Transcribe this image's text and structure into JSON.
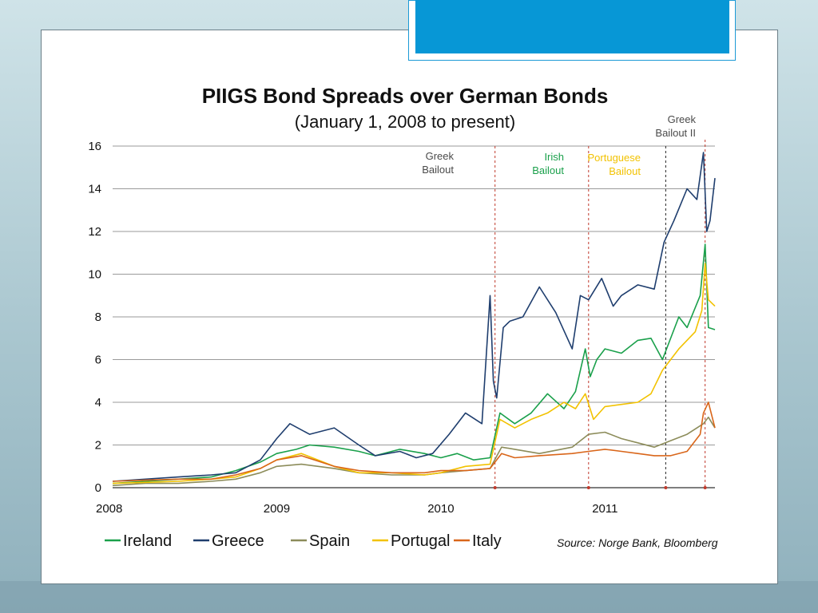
{
  "title": "PIIGS Bond Spreads over German Bonds",
  "subtitle": "(January 1, 2008 to present)",
  "source": "Source: Norge Bank, Bloomberg",
  "chart_data": {
    "type": "line",
    "title": "PIIGS Bond Spreads over German Bonds",
    "subtitle": "(January 1, 2008 to present)",
    "xlabel": "",
    "ylabel": "",
    "ylim": [
      0,
      16
    ],
    "xlim": [
      2008.0,
      2011.67
    ],
    "yticks": [
      0,
      2,
      4,
      6,
      8,
      10,
      12,
      14,
      16
    ],
    "xticks": [
      2008,
      2009,
      2010,
      2011
    ],
    "xtick_labels": [
      "2008",
      "2009",
      "2010",
      "2011"
    ],
    "grid": "horizontal",
    "legend": "bottom",
    "series": [
      {
        "name": "Ireland",
        "color": "#1aa04b",
        "x": [
          2008.0,
          2008.2,
          2008.4,
          2008.6,
          2008.75,
          2008.9,
          2009.0,
          2009.12,
          2009.2,
          2009.35,
          2009.5,
          2009.6,
          2009.75,
          2009.9,
          2010.0,
          2010.1,
          2010.2,
          2010.3,
          2010.36,
          2010.45,
          2010.55,
          2010.65,
          2010.75,
          2010.82,
          2010.88,
          2010.91,
          2010.95,
          2011.0,
          2011.1,
          2011.2,
          2011.28,
          2011.35,
          2011.45,
          2011.5,
          2011.58,
          2011.61,
          2011.63,
          2011.67
        ],
        "y": [
          0.2,
          0.3,
          0.4,
          0.5,
          0.8,
          1.2,
          1.6,
          1.8,
          2.0,
          1.9,
          1.7,
          1.5,
          1.8,
          1.6,
          1.4,
          1.6,
          1.3,
          1.4,
          3.5,
          3.0,
          3.5,
          4.4,
          3.7,
          4.5,
          6.5,
          5.2,
          6.0,
          6.5,
          6.3,
          6.9,
          7.0,
          6.0,
          8.0,
          7.5,
          9.0,
          11.4,
          7.5,
          7.4
        ]
      },
      {
        "name": "Greece",
        "color": "#1f3e6e",
        "x": [
          2008.0,
          2008.2,
          2008.4,
          2008.6,
          2008.75,
          2008.9,
          2009.0,
          2009.08,
          2009.2,
          2009.35,
          2009.5,
          2009.6,
          2009.75,
          2009.85,
          2009.95,
          2010.05,
          2010.15,
          2010.25,
          2010.3,
          2010.32,
          2010.34,
          2010.38,
          2010.42,
          2010.5,
          2010.6,
          2010.7,
          2010.8,
          2010.85,
          2010.9,
          2010.98,
          2011.05,
          2011.1,
          2011.2,
          2011.3,
          2011.36,
          2011.42,
          2011.5,
          2011.56,
          2011.6,
          2011.62,
          2011.64,
          2011.67
        ],
        "y": [
          0.3,
          0.4,
          0.5,
          0.6,
          0.7,
          1.3,
          2.3,
          3.0,
          2.5,
          2.8,
          2.0,
          1.5,
          1.7,
          1.4,
          1.6,
          2.5,
          3.5,
          3.0,
          9.0,
          5.0,
          4.2,
          7.5,
          7.8,
          8.0,
          9.4,
          8.2,
          6.5,
          9.0,
          8.8,
          9.8,
          8.5,
          9.0,
          9.5,
          9.3,
          11.5,
          12.5,
          14.0,
          13.5,
          15.7,
          12.0,
          12.5,
          14.5
        ]
      },
      {
        "name": "Spain",
        "color": "#8c8c5a",
        "x": [
          2008.0,
          2008.2,
          2008.4,
          2008.6,
          2008.75,
          2008.9,
          2009.0,
          2009.15,
          2009.35,
          2009.5,
          2009.7,
          2009.9,
          2010.0,
          2010.15,
          2010.3,
          2010.37,
          2010.45,
          2010.6,
          2010.8,
          2010.9,
          2011.0,
          2011.1,
          2011.2,
          2011.3,
          2011.4,
          2011.5,
          2011.6,
          2011.63,
          2011.67
        ],
        "y": [
          0.1,
          0.2,
          0.2,
          0.3,
          0.4,
          0.7,
          1.0,
          1.1,
          0.9,
          0.7,
          0.6,
          0.6,
          0.7,
          0.8,
          0.9,
          1.9,
          1.8,
          1.6,
          1.9,
          2.5,
          2.6,
          2.3,
          2.1,
          1.9,
          2.2,
          2.5,
          3.0,
          3.3,
          2.8
        ]
      },
      {
        "name": "Portugal",
        "color": "#f2c200",
        "x": [
          2008.0,
          2008.2,
          2008.4,
          2008.6,
          2008.75,
          2008.9,
          2009.0,
          2009.15,
          2009.35,
          2009.5,
          2009.7,
          2009.9,
          2010.0,
          2010.15,
          2010.3,
          2010.36,
          2010.45,
          2010.55,
          2010.65,
          2010.75,
          2010.82,
          2010.88,
          2010.93,
          2011.0,
          2011.1,
          2011.2,
          2011.28,
          2011.35,
          2011.45,
          2011.55,
          2011.59,
          2011.61,
          2011.63,
          2011.67
        ],
        "y": [
          0.2,
          0.25,
          0.3,
          0.4,
          0.5,
          0.9,
          1.3,
          1.6,
          1.0,
          0.7,
          0.7,
          0.6,
          0.7,
          1.0,
          1.1,
          3.2,
          2.8,
          3.2,
          3.5,
          4.0,
          3.7,
          4.4,
          3.2,
          3.8,
          3.9,
          4.0,
          4.4,
          5.5,
          6.5,
          7.3,
          8.3,
          10.5,
          8.8,
          8.5
        ]
      },
      {
        "name": "Italy",
        "color": "#d9661a",
        "x": [
          2008.0,
          2008.2,
          2008.4,
          2008.6,
          2008.75,
          2008.9,
          2009.0,
          2009.15,
          2009.35,
          2009.5,
          2009.7,
          2009.9,
          2010.0,
          2010.15,
          2010.3,
          2010.37,
          2010.45,
          2010.6,
          2010.8,
          2010.9,
          2011.0,
          2011.1,
          2011.2,
          2011.3,
          2011.4,
          2011.5,
          2011.58,
          2011.6,
          2011.63,
          2011.67
        ],
        "y": [
          0.3,
          0.35,
          0.4,
          0.4,
          0.6,
          0.9,
          1.3,
          1.5,
          1.0,
          0.8,
          0.7,
          0.7,
          0.8,
          0.8,
          0.9,
          1.6,
          1.4,
          1.5,
          1.6,
          1.7,
          1.8,
          1.7,
          1.6,
          1.5,
          1.5,
          1.7,
          2.5,
          3.5,
          4.0,
          2.8
        ]
      }
    ],
    "annotations": [
      {
        "label": "Greek\nBailout",
        "x": 2010.33,
        "color": "#4a4a4a",
        "line_color": "#c0392b"
      },
      {
        "label": "Irish\nBailout",
        "x": 2010.9,
        "color": "#1aa04b",
        "line_color": "#c0392b"
      },
      {
        "label": "Portuguese\nBailout",
        "x": 2011.37,
        "color": "#f2c200",
        "line_color": "#222222"
      },
      {
        "label": "Greek\nBailout II",
        "x": 2011.61,
        "color": "#4a4a4a",
        "line_color": "#c0392b"
      }
    ]
  }
}
